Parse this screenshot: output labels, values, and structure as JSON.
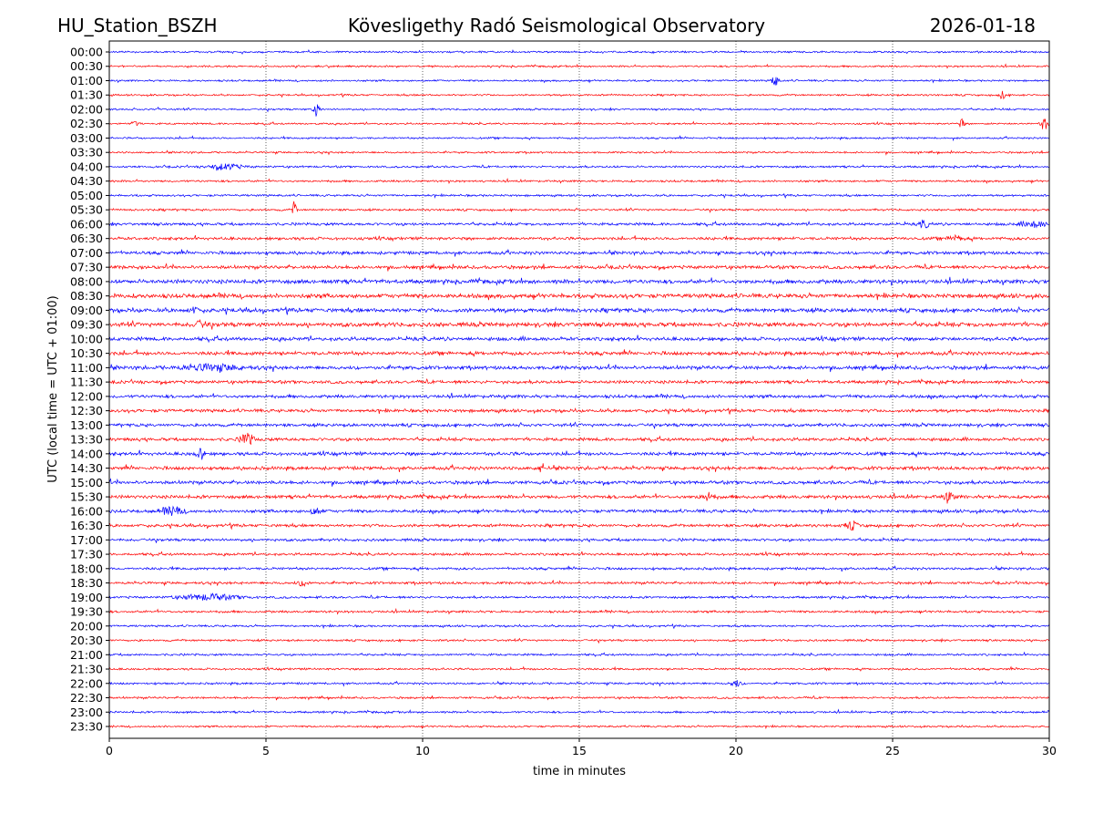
{
  "header": {
    "station": "HU_Station_BSZH",
    "observatory": "Kövesligethy Radó Seismological Observatory",
    "date": "2026-01-18"
  },
  "chart_data": {
    "type": "line",
    "title": "Kövesligethy Radó Seismological Observatory",
    "xlabel": "time in minutes",
    "ylabel": "UTC (local time = UTC + 01:00)",
    "xlim": [
      0,
      30
    ],
    "xticks": [
      "0",
      "5",
      "10",
      "15",
      "20",
      "25",
      "30"
    ],
    "xtick_values": [
      0,
      5,
      10,
      15,
      20,
      25,
      30
    ],
    "grid": "vertical dotted at x ticks",
    "colors": [
      "#0000ff",
      "#ff0000"
    ],
    "rows": [
      "00:00",
      "00:30",
      "01:00",
      "01:30",
      "02:00",
      "02:30",
      "03:00",
      "03:30",
      "04:00",
      "04:30",
      "05:00",
      "05:30",
      "06:00",
      "06:30",
      "07:00",
      "07:30",
      "08:00",
      "08:30",
      "09:00",
      "09:30",
      "10:00",
      "10:30",
      "11:00",
      "11:30",
      "12:00",
      "12:30",
      "13:00",
      "13:30",
      "14:00",
      "14:30",
      "15:00",
      "15:30",
      "16:00",
      "16:30",
      "17:00",
      "17:30",
      "18:00",
      "18:30",
      "19:00",
      "19:30",
      "20:00",
      "20:30",
      "21:00",
      "21:30",
      "22:00",
      "22:30",
      "23:00",
      "23:30"
    ],
    "noise_level": [
      0.8,
      0.8,
      0.8,
      0.8,
      0.8,
      0.8,
      0.8,
      0.8,
      0.9,
      0.9,
      0.9,
      0.9,
      1.2,
      1.3,
      1.4,
      1.5,
      1.8,
      1.9,
      1.8,
      1.9,
      1.6,
      1.6,
      1.6,
      1.4,
      1.4,
      1.4,
      1.4,
      1.4,
      1.5,
      1.5,
      1.5,
      1.5,
      1.4,
      1.3,
      1.2,
      1.1,
      1.1,
      1.1,
      1.0,
      1.0,
      0.9,
      0.9,
      0.9,
      0.9,
      0.9,
      0.9,
      0.9,
      0.8
    ],
    "events": [
      {
        "row": 2,
        "minute": 21.25,
        "dur": 0.1,
        "amp": 7
      },
      {
        "row": 3,
        "minute": 28.5,
        "dur": 0.1,
        "amp": 4
      },
      {
        "row": 4,
        "minute": 6.6,
        "dur": 0.1,
        "amp": 7
      },
      {
        "row": 4,
        "minute": 1.6,
        "dur": 0.05,
        "amp": 3
      },
      {
        "row": 5,
        "minute": 27.2,
        "dur": 0.08,
        "amp": 5
      },
      {
        "row": 5,
        "minute": 29.85,
        "dur": 0.1,
        "amp": 9
      },
      {
        "row": 5,
        "minute": 0.8,
        "dur": 0.1,
        "amp": 3
      },
      {
        "row": 8,
        "minute": 3.7,
        "dur": 0.5,
        "amp": 3
      },
      {
        "row": 11,
        "minute": 5.9,
        "dur": 0.06,
        "amp": 9
      },
      {
        "row": 12,
        "minute": 26.0,
        "dur": 0.15,
        "amp": 4
      },
      {
        "row": 12,
        "minute": 29.5,
        "dur": 0.4,
        "amp": 3
      },
      {
        "row": 13,
        "minute": 27.0,
        "dur": 0.2,
        "amp": 3
      },
      {
        "row": 18,
        "minute": 2.7,
        "dur": 0.15,
        "amp": 3
      },
      {
        "row": 19,
        "minute": 2.9,
        "dur": 0.2,
        "amp": 3
      },
      {
        "row": 22,
        "minute": 3.3,
        "dur": 0.9,
        "amp": 3
      },
      {
        "row": 27,
        "minute": 4.4,
        "dur": 0.2,
        "amp": 6
      },
      {
        "row": 28,
        "minute": 2.9,
        "dur": 0.12,
        "amp": 6
      },
      {
        "row": 29,
        "minute": 13.8,
        "dur": 0.08,
        "amp": 6
      },
      {
        "row": 31,
        "minute": 19.1,
        "dur": 0.2,
        "amp": 4
      },
      {
        "row": 31,
        "minute": 26.8,
        "dur": 0.15,
        "amp": 5
      },
      {
        "row": 32,
        "minute": 2.0,
        "dur": 0.3,
        "amp": 5
      },
      {
        "row": 32,
        "minute": 6.6,
        "dur": 0.15,
        "amp": 4
      },
      {
        "row": 33,
        "minute": 23.7,
        "dur": 0.2,
        "amp": 4
      },
      {
        "row": 37,
        "minute": 6.2,
        "dur": 0.2,
        "amp": 3
      },
      {
        "row": 38,
        "minute": 3.2,
        "dur": 0.9,
        "amp": 3
      },
      {
        "row": 44,
        "minute": 20.0,
        "dur": 0.15,
        "amp": 4
      }
    ]
  }
}
